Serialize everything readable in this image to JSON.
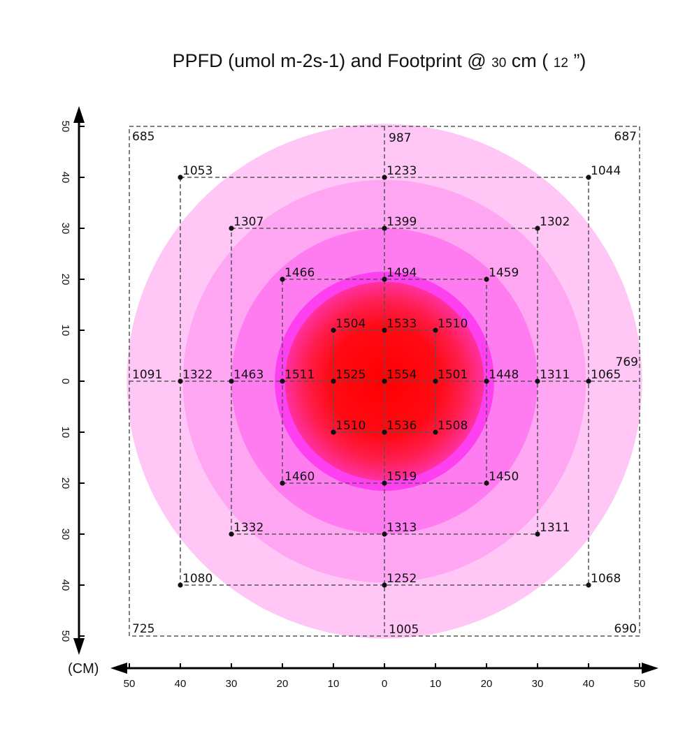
{
  "title": {
    "main": "PPFD (umol m-2s-1) and Footprint @",
    "distance_cm": "30",
    "cm_label": " cm (",
    "distance_in": "12",
    "close": " ”)"
  },
  "chart_data": {
    "type": "heatmap",
    "unit_label": "(CM)",
    "x_range": [
      -50,
      50
    ],
    "y_range": [
      -50,
      50
    ],
    "x_tick_labels": [
      "50",
      "40",
      "30",
      "20",
      "10",
      "0",
      "10",
      "20",
      "30",
      "40",
      "50"
    ],
    "y_tick_labels": [
      "50",
      "40",
      "30",
      "20",
      "10",
      "0",
      "10",
      "20",
      "30",
      "40",
      "50"
    ],
    "colors": {
      "center": "#ff0000",
      "ring_inner": "#ff40f0",
      "ring_mid": "#ff7cf0",
      "ring_outer": "#ffa6f2",
      "ring_edge": "#ffc6f6"
    },
    "points": [
      {
        "x": -50,
        "y": 50,
        "value": 685
      },
      {
        "x": 0,
        "y": 50,
        "value": 987
      },
      {
        "x": 50,
        "y": 50,
        "value": 687
      },
      {
        "x": -40,
        "y": 40,
        "value": 1053
      },
      {
        "x": 0,
        "y": 40,
        "value": 1233
      },
      {
        "x": 40,
        "y": 40,
        "value": 1044
      },
      {
        "x": -30,
        "y": 30,
        "value": 1307
      },
      {
        "x": 0,
        "y": 30,
        "value": 1399
      },
      {
        "x": 30,
        "y": 30,
        "value": 1302
      },
      {
        "x": -20,
        "y": 20,
        "value": 1466
      },
      {
        "x": 0,
        "y": 20,
        "value": 1494
      },
      {
        "x": 20,
        "y": 20,
        "value": 1459
      },
      {
        "x": -10,
        "y": 10,
        "value": 1504
      },
      {
        "x": 0,
        "y": 10,
        "value": 1533
      },
      {
        "x": 10,
        "y": 10,
        "value": 1510
      },
      {
        "x": -50,
        "y": 0,
        "value": 1091
      },
      {
        "x": -40,
        "y": 0,
        "value": 1322
      },
      {
        "x": -30,
        "y": 0,
        "value": 1463
      },
      {
        "x": -20,
        "y": 0,
        "value": 1511
      },
      {
        "x": -10,
        "y": 0,
        "value": 1525
      },
      {
        "x": 0,
        "y": 0,
        "value": 1554
      },
      {
        "x": 10,
        "y": 0,
        "value": 1501
      },
      {
        "x": 20,
        "y": 0,
        "value": 1448
      },
      {
        "x": 30,
        "y": 0,
        "value": 1311
      },
      {
        "x": 40,
        "y": 0,
        "value": 1065
      },
      {
        "x": 50,
        "y": 0,
        "value": 769
      },
      {
        "x": -10,
        "y": -10,
        "value": 1510
      },
      {
        "x": 0,
        "y": -10,
        "value": 1536
      },
      {
        "x": 10,
        "y": -10,
        "value": 1508
      },
      {
        "x": -20,
        "y": -20,
        "value": 1460
      },
      {
        "x": 0,
        "y": -20,
        "value": 1519
      },
      {
        "x": 20,
        "y": -20,
        "value": 1450
      },
      {
        "x": -30,
        "y": -30,
        "value": 1332
      },
      {
        "x": 0,
        "y": -30,
        "value": 1313
      },
      {
        "x": 30,
        "y": -30,
        "value": 1311
      },
      {
        "x": -40,
        "y": -40,
        "value": 1080
      },
      {
        "x": 0,
        "y": -40,
        "value": 1252
      },
      {
        "x": 40,
        "y": -40,
        "value": 1068
      },
      {
        "x": -50,
        "y": -50,
        "value": 725
      },
      {
        "x": 0,
        "y": -50,
        "value": 1005
      },
      {
        "x": 50,
        "y": -50,
        "value": 690
      }
    ]
  }
}
